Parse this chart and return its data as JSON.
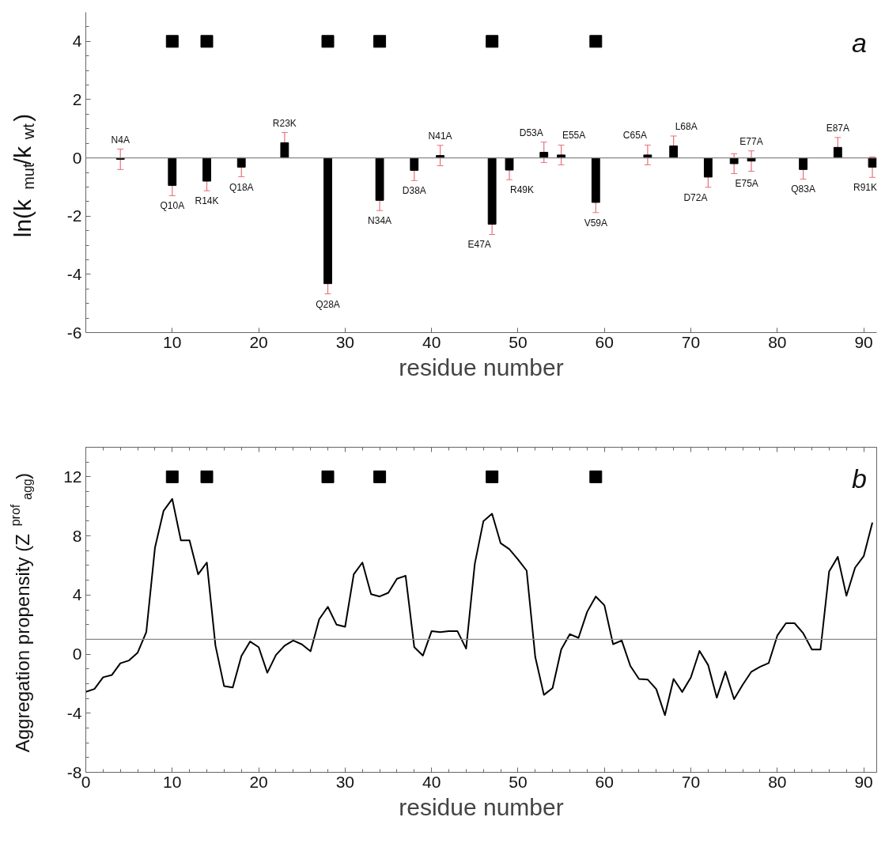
{
  "chart_data": [
    {
      "type": "bar",
      "xlabel": "residue number",
      "ylabel": "ln(k$_{mut}$/k$_{wt}$)",
      "xlim": [
        0,
        91.5
      ],
      "xticks": [
        10,
        20,
        30,
        40,
        50,
        60,
        70,
        80,
        90
      ],
      "ylim": [
        -6,
        5
      ],
      "yticks": [
        -6,
        -4,
        -2,
        0,
        2,
        4,
        {
          "value": -5.5,
          "label": null
        },
        {
          "value": -5,
          "label": null
        },
        {
          "value": -4.5,
          "label": null
        },
        {
          "value": -3.5,
          "label": null
        },
        {
          "value": -3,
          "label": null
        },
        {
          "value": -2.5,
          "label": null
        },
        {
          "value": -1.5,
          "label": null
        },
        {
          "value": -1,
          "label": null
        },
        {
          "value": -0.5,
          "label": null
        },
        {
          "value": 0.5,
          "label": null
        },
        {
          "value": 1,
          "label": null
        },
        {
          "value": 1.5,
          "label": null
        },
        {
          "value": 2.5,
          "label": null
        },
        {
          "value": 3,
          "label": null
        },
        {
          "value": 3.5,
          "label": null
        },
        {
          "value": 4.5,
          "label": null
        }
      ],
      "ref_lines": [
        {
          "axis": "y",
          "value": 0,
          "label": null,
          "color": "#888888"
        }
      ],
      "series": [
        {
          "type": "bar",
          "color": "#000000",
          "x": [
            4,
            10,
            14,
            18,
            23,
            28,
            34,
            38,
            41,
            47,
            49,
            53,
            55,
            59,
            65,
            68,
            72,
            75,
            77,
            83,
            87,
            91
          ],
          "values": [
            -0.05,
            -0.95,
            -0.8,
            -0.32,
            0.52,
            -4.32,
            -1.46,
            -0.43,
            0.08,
            -2.28,
            -0.42,
            0.19,
            0.1,
            -1.53,
            0.1,
            0.41,
            -0.66,
            -0.2,
            -0.11,
            -0.4,
            0.36,
            -0.32
          ],
          "errors": [
            0.35,
            0.35,
            0.33,
            0.33,
            0.35,
            0.35,
            0.35,
            0.35,
            0.35,
            0.35,
            0.33,
            0.35,
            0.34,
            0.35,
            0.34,
            0.34,
            0.35,
            0.34,
            0.35,
            0.33,
            0.34,
            0.35
          ]
        },
        {
          "type": "scatter",
          "marker": "square",
          "color": "#000000",
          "x": [
            10,
            14,
            28,
            34,
            47,
            59
          ],
          "values": [
            4,
            4,
            4,
            4,
            4,
            4
          ]
        }
      ],
      "annotations": [
        {
          "text": "N4A",
          "x": 4,
          "y": -0.05
        },
        {
          "text": "Q10A",
          "x": 10,
          "y": -0.95
        },
        {
          "text": "R14K",
          "x": 14,
          "y": -0.8
        },
        {
          "text": "Q18A",
          "x": 18,
          "y": -0.32
        },
        {
          "text": "R23K",
          "x": 23,
          "y": 0.52
        },
        {
          "text": "Q28A",
          "x": 28,
          "y": -4.32
        },
        {
          "text": "N34A",
          "x": 34,
          "y": -1.46
        },
        {
          "text": "D38A",
          "x": 38,
          "y": -0.43
        },
        {
          "text": "N41A",
          "x": 41,
          "y": 0.08
        },
        {
          "text": "E47A",
          "x": 47,
          "y": -2.28
        },
        {
          "text": "R49K",
          "x": 49,
          "y": -0.42
        },
        {
          "text": "D53A",
          "x": 53,
          "y": 0.19
        },
        {
          "text": "E55A",
          "x": 55,
          "y": 0.1
        },
        {
          "text": "V59A",
          "x": 59,
          "y": -1.53
        },
        {
          "text": "C65A",
          "x": 65,
          "y": 0.1
        },
        {
          "text": "L68A",
          "x": 68,
          "y": 0.41
        },
        {
          "text": "D72A",
          "x": 72,
          "y": -0.66
        },
        {
          "text": "E75A",
          "x": 75,
          "y": -0.2
        },
        {
          "text": "E77A",
          "x": 77,
          "y": -0.11
        },
        {
          "text": "Q83A",
          "x": 83,
          "y": -0.4
        },
        {
          "text": "E87A",
          "x": 87,
          "y": 0.36
        },
        {
          "text": "R91K",
          "x": 91,
          "y": -0.32
        },
        "a"
      ]
    },
    {
      "type": "line",
      "xlabel": "residue number",
      "ylabel": "Aggregation propensity (Z$^{prof}$$_{agg}$)",
      "xlim": [
        0,
        91.5
      ],
      "xticks": [
        0,
        10,
        20,
        30,
        40,
        50,
        60,
        70,
        80,
        90,
        {
          "value": 2,
          "label": null
        },
        {
          "value": 4,
          "label": null
        },
        {
          "value": 6,
          "label": null
        },
        {
          "value": 8,
          "label": null
        },
        {
          "value": 12,
          "label": null
        },
        {
          "value": 14,
          "label": null
        },
        {
          "value": 16,
          "label": null
        },
        {
          "value": 18,
          "label": null
        },
        {
          "value": 22,
          "label": null
        },
        {
          "value": 24,
          "label": null
        },
        {
          "value": 26,
          "label": null
        },
        {
          "value": 28,
          "label": null
        },
        {
          "value": 32,
          "label": null
        },
        {
          "value": 34,
          "label": null
        },
        {
          "value": 36,
          "label": null
        },
        {
          "value": 38,
          "label": null
        },
        {
          "value": 42,
          "label": null
        },
        {
          "value": 44,
          "label": null
        },
        {
          "value": 46,
          "label": null
        },
        {
          "value": 48,
          "label": null
        },
        {
          "value": 52,
          "label": null
        },
        {
          "value": 54,
          "label": null
        },
        {
          "value": 56,
          "label": null
        },
        {
          "value": 58,
          "label": null
        },
        {
          "value": 62,
          "label": null
        },
        {
          "value": 64,
          "label": null
        },
        {
          "value": 66,
          "label": null
        },
        {
          "value": 68,
          "label": null
        },
        {
          "value": 72,
          "label": null
        },
        {
          "value": 74,
          "label": null
        },
        {
          "value": 76,
          "label": null
        },
        {
          "value": 78,
          "label": null
        },
        {
          "value": 82,
          "label": null
        },
        {
          "value": 84,
          "label": null
        },
        {
          "value": 86,
          "label": null
        },
        {
          "value": 88,
          "label": null
        }
      ],
      "ylim": [
        -8,
        14
      ],
      "yticks": [
        -8,
        -4,
        0,
        4,
        8,
        12,
        {
          "value": -7,
          "label": null
        },
        {
          "value": -6,
          "label": null
        },
        {
          "value": -5,
          "label": null
        },
        {
          "value": -3,
          "label": null
        },
        {
          "value": -2,
          "label": null
        },
        {
          "value": -1,
          "label": null
        },
        {
          "value": 1,
          "label": null
        },
        {
          "value": 2,
          "label": null
        },
        {
          "value": 3,
          "label": null
        },
        {
          "value": 5,
          "label": null
        },
        {
          "value": 6,
          "label": null
        },
        {
          "value": 7,
          "label": null
        },
        {
          "value": 9,
          "label": null
        },
        {
          "value": 10,
          "label": null
        },
        {
          "value": 11,
          "label": null
        },
        {
          "value": 13,
          "label": null
        }
      ],
      "ref_lines": [
        {
          "axis": "y",
          "value": 1,
          "label": null,
          "color": "#888888"
        }
      ],
      "series": [
        {
          "type": "line",
          "color": "#000000",
          "x": [
            0,
            1,
            2,
            3,
            4,
            5,
            6,
            7,
            8,
            9,
            10,
            11,
            12,
            13,
            14,
            15,
            16,
            17,
            18,
            19,
            20,
            21,
            22,
            23,
            24,
            25,
            26,
            27,
            28,
            29,
            30,
            31,
            32,
            33,
            34,
            35,
            36,
            37,
            38,
            39,
            40,
            41,
            42,
            43,
            44,
            45,
            46,
            47,
            48,
            49,
            50,
            51,
            52,
            53,
            54,
            55,
            56,
            57,
            58,
            59,
            60,
            61,
            62,
            63,
            64,
            65,
            66,
            67,
            68,
            69,
            70,
            71,
            72,
            73,
            74,
            75,
            76,
            77,
            78,
            79,
            80,
            81,
            82,
            83,
            84,
            85,
            86,
            87,
            88,
            89,
            90,
            91
          ],
          "values": [
            -2.55,
            -2.36,
            -1.57,
            -1.42,
            -0.62,
            -0.43,
            0.1,
            1.5,
            7.2,
            9.7,
            10.5,
            7.7,
            7.7,
            5.4,
            6.2,
            0.57,
            -2.17,
            -2.26,
            -0.13,
            0.85,
            0.47,
            -1.26,
            -0.06,
            0.57,
            0.92,
            0.66,
            0.19,
            2.36,
            3.2,
            2.0,
            1.85,
            5.4,
            6.2,
            4.06,
            3.9,
            4.15,
            5.1,
            5.3,
            0.47,
            -0.1,
            1.55,
            1.49,
            1.55,
            1.55,
            0.37,
            6.1,
            9.0,
            9.5,
            7.5,
            7.1,
            6.4,
            5.65,
            -0.2,
            -2.76,
            -2.3,
            0.31,
            1.35,
            1.1,
            2.86,
            3.9,
            3.3,
            0.67,
            0.92,
            -0.8,
            -1.68,
            -1.72,
            -2.37,
            -4.13,
            -1.68,
            -2.56,
            -1.58,
            0.22,
            -0.74,
            -2.95,
            -1.19,
            -3.05,
            -2.07,
            -1.19,
            -0.86,
            -0.61,
            1.25,
            2.09,
            2.09,
            1.41,
            0.31,
            0.31,
            5.6,
            6.58,
            3.95,
            5.85,
            6.63,
            8.9
          ]
        },
        {
          "type": "scatter",
          "marker": "square",
          "color": "#000000",
          "x": [
            10,
            14,
            28,
            34,
            47,
            59
          ],
          "values": [
            12,
            12,
            12,
            12,
            12,
            12
          ]
        }
      ],
      "annotations": [
        "b"
      ]
    }
  ]
}
